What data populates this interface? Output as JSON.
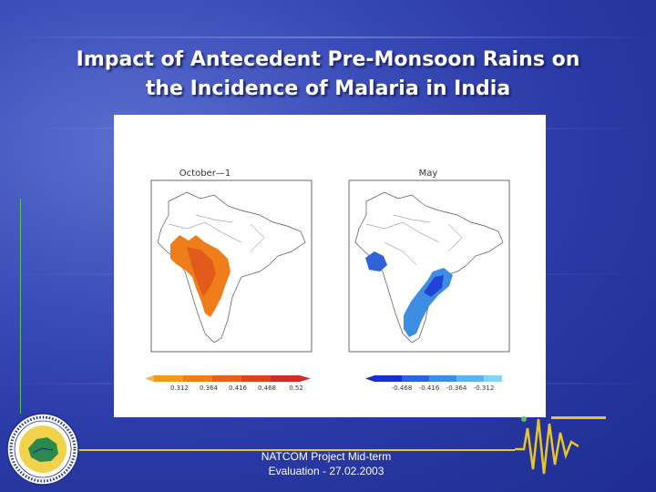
{
  "slide": {
    "title_line1": "Impact of Antecedent Pre-Monsoon Rains on",
    "title_line2": "the Incidence of Malaria in India",
    "footer_line1": "NATCOM Project Mid-term",
    "footer_line2": "Evaluation - 27.02.2003"
  },
  "figure": {
    "left_panel": {
      "label": "October—1",
      "colorbar_ticks": [
        "0.312",
        "0.364",
        "0.416",
        "0.468",
        "0.52"
      ],
      "colors": [
        "#f39a1e",
        "#ee7d1a",
        "#e8611c",
        "#e0421e",
        "#d52a28"
      ]
    },
    "right_panel": {
      "label": "May",
      "colorbar_ticks": [
        "-0.468",
        "-0.416",
        "-0.364",
        "-0.312"
      ],
      "colors": [
        "#1a2fd0",
        "#2d62d8",
        "#3d8ee3",
        "#5fb4ee",
        "#8ad2f5"
      ]
    }
  },
  "colors": {
    "accent_line": "#e6c62a",
    "green_line": "#5fbf5f"
  }
}
